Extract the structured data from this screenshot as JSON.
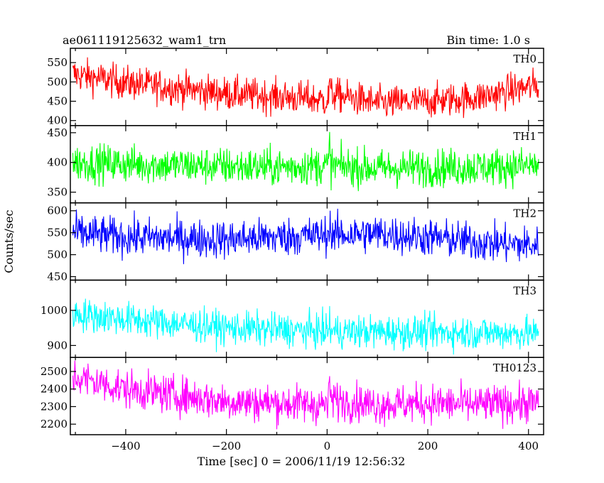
{
  "header": {
    "left": "ae061119125632_wam1_trn",
    "right": "Bin time: 1.0 s"
  },
  "chart_data": {
    "type": "line",
    "ylabel": "Counts/sec",
    "xlabel": "Time [sec] 0 = 2006/11/19 12:56:32",
    "xlim": [
      -510,
      430
    ],
    "x_ticks": [
      -400,
      -200,
      0,
      200,
      400
    ],
    "panels": [
      {
        "name": "TH0",
        "color": "#ff0000",
        "ylim": [
          387,
          587
        ],
        "y_ticks": [
          400,
          450,
          500,
          550
        ],
        "trend_x": [
          -505,
          -400,
          -200,
          -50,
          0,
          10,
          100,
          200,
          300,
          420
        ],
        "trend_y": [
          520,
          498,
          470,
          458,
          452,
          468,
          445,
          450,
          460,
          492
        ],
        "noise": 22,
        "spike_at": 5,
        "spike": 60
      },
      {
        "name": "TH1",
        "color": "#00ff00",
        "ylim": [
          332,
          462
        ],
        "y_ticks": [
          350,
          400,
          450
        ],
        "trend_x": [
          -505,
          -300,
          -100,
          0,
          100,
          300,
          420
        ],
        "trend_y": [
          400,
          395,
          392,
          395,
          390,
          392,
          395
        ],
        "noise": 16,
        "spike_at": 5,
        "spike": 45
      },
      {
        "name": "TH2",
        "color": "#0000ff",
        "ylim": [
          442,
          618
        ],
        "y_ticks": [
          450,
          500,
          550,
          600
        ],
        "trend_x": [
          -505,
          -400,
          -200,
          0,
          100,
          200,
          300,
          420
        ],
        "trend_y": [
          550,
          540,
          535,
          545,
          548,
          540,
          528,
          520
        ],
        "noise": 22,
        "spike_at": 5,
        "spike": 40
      },
      {
        "name": "TH3",
        "color": "#00ffff",
        "ylim": [
          866,
          1086
        ],
        "y_ticks": [
          900,
          1000
        ],
        "trend_x": [
          -505,
          -400,
          -200,
          0,
          200,
          400,
          420
        ],
        "trend_y": [
          990,
          975,
          950,
          940,
          938,
          935,
          930
        ],
        "noise": 24,
        "spike_at": 5,
        "spike": 40
      },
      {
        "name": "TH0123",
        "color": "#ff00ff",
        "ylim": [
          2140,
          2580
        ],
        "y_ticks": [
          2200,
          2300,
          2400,
          2500
        ],
        "trend_x": [
          -505,
          -400,
          -200,
          0,
          10,
          100,
          200,
          300,
          420
        ],
        "trend_y": [
          2470,
          2400,
          2330,
          2310,
          2340,
          2310,
          2320,
          2310,
          2320
        ],
        "noise": 55,
        "spike_at": 5,
        "spike": 150
      }
    ]
  }
}
